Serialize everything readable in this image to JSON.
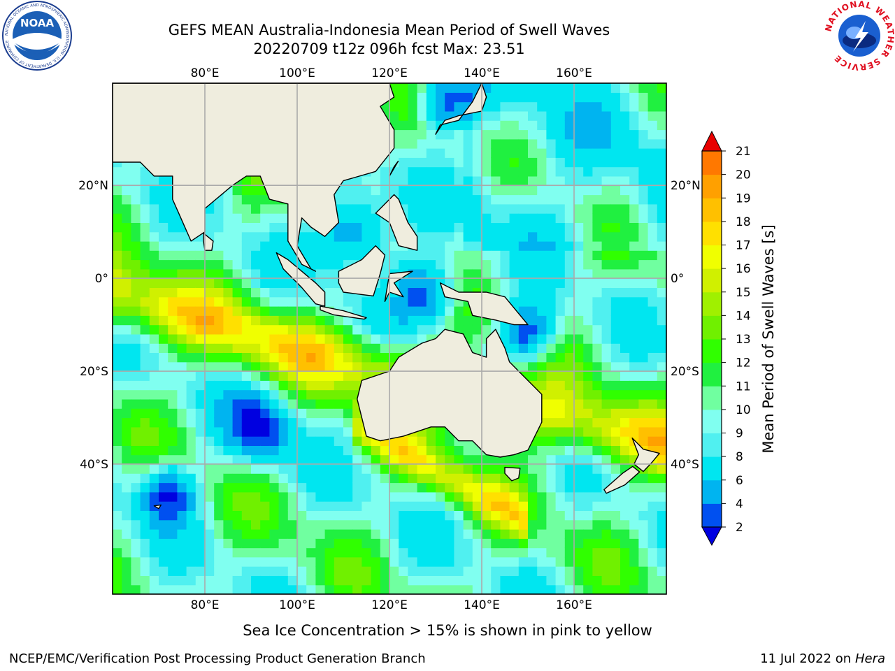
{
  "header": {
    "title_line1": "GEFS MEAN Australia-Indonesia Mean Period of Swell Waves",
    "title_line2": "20220709 t12z 096h fcst   Max: 23.51"
  },
  "logos": {
    "left_text": "NOAA",
    "left_ring_text": "NATIONAL OCEANIC AND ATMOSPHERIC ADMINISTRATION · U.S. DEPARTMENT OF COMMERCE",
    "right_ring_text": "NATIONAL WEATHER SERVICE"
  },
  "map": {
    "lon_labels": [
      "80°E",
      "100°E",
      "120°E",
      "140°E",
      "160°E"
    ],
    "lat_labels": [
      "20°N",
      "0°",
      "20°S",
      "40°S"
    ],
    "lon_range": [
      60,
      180
    ],
    "lat_range": [
      -68,
      42
    ],
    "field_max": 23.51
  },
  "colorbar": {
    "label": "Mean Period of Swell Waves [s]",
    "ticks": [
      "2",
      "4",
      "6",
      "8",
      "9",
      "10",
      "11",
      "12",
      "13",
      "14",
      "15",
      "16",
      "17",
      "18",
      "19",
      "20",
      "21"
    ],
    "colors": [
      "#0050f0",
      "#00b4f0",
      "#00e6f0",
      "#50f0f0",
      "#80fff0",
      "#70ffa0",
      "#20f040",
      "#30ff00",
      "#70f000",
      "#a0f000",
      "#d0f000",
      "#f0ff00",
      "#ffe000",
      "#ffc000",
      "#ffa000",
      "#ff7800",
      "#ff5000",
      "#ff2000"
    ],
    "under_color": "#0000e0",
    "over_color": "#e80000"
  },
  "footer": {
    "note": "Sea Ice Concentration > 15% is shown in pink to yellow",
    "producer": "NCEP/EMC/Verification Post Processing Product Generation Branch",
    "date": "11 Jul 2022 on ",
    "machine": "Hera"
  }
}
